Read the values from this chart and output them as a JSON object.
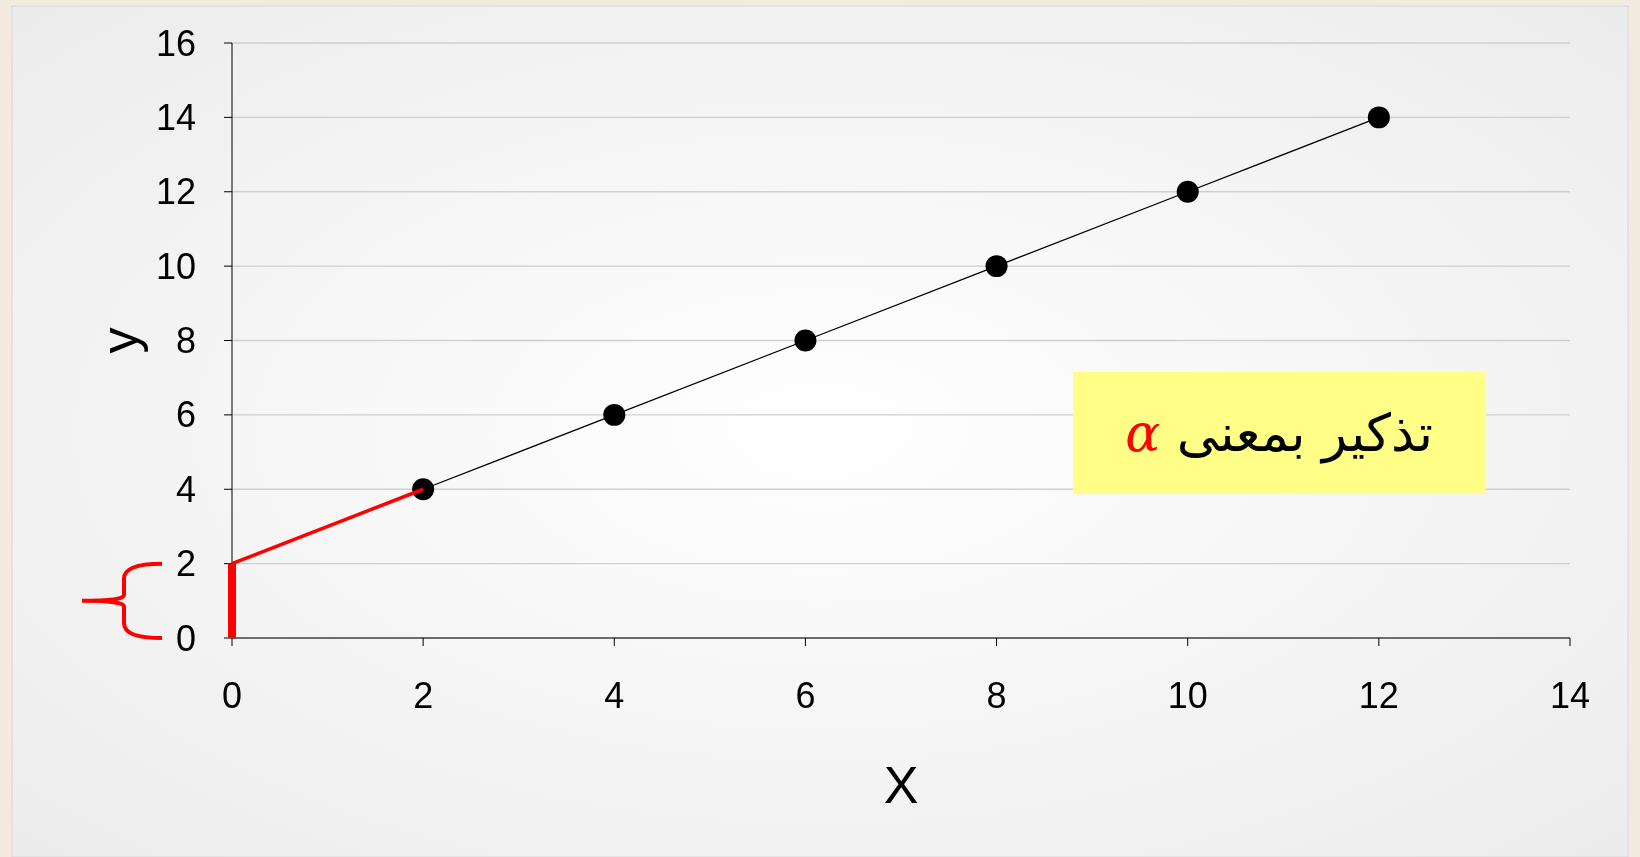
{
  "chart_data": {
    "type": "line",
    "xlabel": "X",
    "ylabel": "y",
    "xlim": [
      0,
      14
    ],
    "xticks": [
      0,
      2,
      4,
      6,
      8,
      10,
      12,
      14
    ],
    "ylim": [
      0,
      16
    ],
    "yticks": [
      0,
      2,
      4,
      6,
      8,
      10,
      12,
      14,
      16
    ],
    "grid": "y",
    "series": [
      {
        "color": "#000000",
        "marker": "circle",
        "x": [
          2,
          4,
          6,
          8,
          10,
          12
        ],
        "values": [
          4,
          6,
          8,
          10,
          12,
          14
        ]
      },
      {
        "type": "line",
        "color": "#ff0000",
        "marker": "none",
        "x": [
          0,
          2
        ],
        "values": [
          2,
          4
        ]
      },
      {
        "type": "bar",
        "color": "#ff0000",
        "x": [
          0
        ],
        "values": [
          2
        ]
      }
    ],
    "annotations": [
      "تذكير بمعنى α"
    ]
  }
}
